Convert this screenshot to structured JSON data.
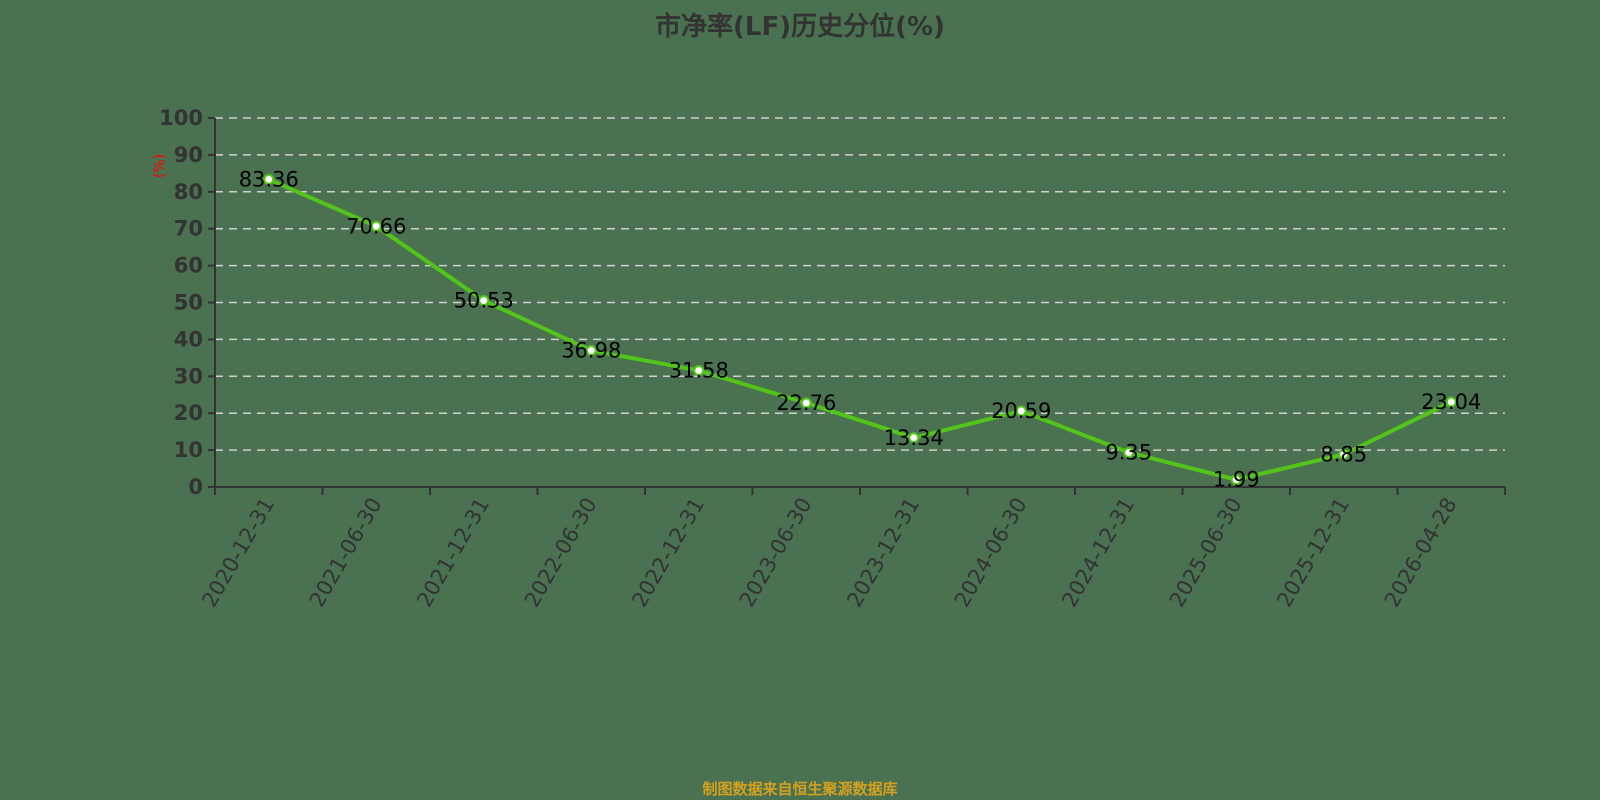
{
  "title": "市净率(LF)历史分位(%)",
  "y_unit": "(%)",
  "source": "制图数据来自恒生聚源数据库",
  "colors": {
    "background": "#4a7250",
    "line": "#52c41a",
    "point_fill": "#ffffff",
    "axis": "#333333",
    "grid": "#d0d0d0",
    "unit_label": "#ff0000",
    "source_text": "#d4a020"
  },
  "chart_data": {
    "type": "line",
    "title": "市净率(LF)历史分位(%)",
    "xlabel": "",
    "ylabel": "(%)",
    "ylim": [
      0,
      100
    ],
    "yticks": [
      0,
      10,
      20,
      30,
      40,
      50,
      60,
      70,
      80,
      90,
      100
    ],
    "grid": true,
    "legend": null,
    "categories": [
      "2020-12-31",
      "2021-06-30",
      "2021-12-31",
      "2022-06-30",
      "2022-12-31",
      "2023-06-30",
      "2023-12-31",
      "2024-06-30",
      "2024-12-31",
      "2025-06-30",
      "2025-12-31",
      "2026-04-28"
    ],
    "series": [
      {
        "name": "市净率(LF)历史分位",
        "values": [
          83.36,
          70.66,
          50.53,
          36.98,
          31.58,
          22.76,
          13.34,
          20.59,
          9.35,
          1.99,
          8.85,
          23.04
        ]
      }
    ]
  }
}
